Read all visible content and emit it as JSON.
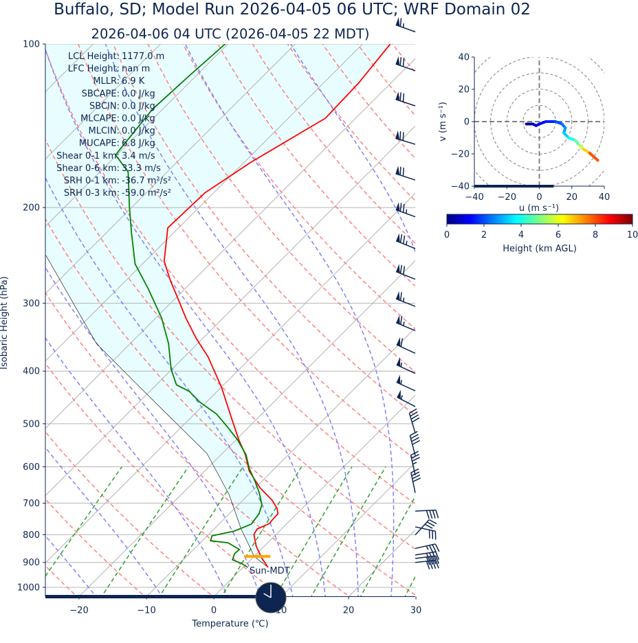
{
  "title": "Buffalo, SD; Model Run 2026-04-05 06 UTC; WRF Domain 02",
  "subtitle": "2026-04-06 04 UTC  (2026-04-05 22 MDT)",
  "stats": [
    {
      "label": "LCL Height:",
      "value": "1177.0 m"
    },
    {
      "label": "LFC Height:",
      "value": "nan m"
    },
    {
      "label": "MLLR:",
      "value": "6.9 K"
    },
    {
      "label": "SBCAPE:",
      "value": "0.0 J/kg"
    },
    {
      "label": "SBCIN:",
      "value": "0.0 J/kg"
    },
    {
      "label": "MLCAPE:",
      "value": "0.0 J/kg"
    },
    {
      "label": "MLCIN:",
      "value": "0.0 J/kg"
    },
    {
      "label": "MUCAPE:",
      "value": "6.8 J/kg"
    },
    {
      "label": "Shear 0-1 km:",
      "value": "3.4 m/s"
    },
    {
      "label": "Shear 0-6 km:",
      "value": "33.3 m/s"
    },
    {
      "label": "SRH 0-1 km:",
      "value": "-36.7 m²/s²"
    },
    {
      "label": "SRH 0-3 km:",
      "value": "-59.0 m²/s²"
    }
  ],
  "sun_label": "Sun-MDT",
  "clock": {
    "hour": 22,
    "minute": 0,
    "timezone": "MDT"
  },
  "colors": {
    "text": "#0d2550",
    "temperature": "#ff0000",
    "dewpoint": "#008000",
    "parcel": "#000000",
    "cin_fill": "#e8fdff",
    "lcl_marker": "#ffa500",
    "dry_adiabat": "#ff8080",
    "moist_adiabat": "#8080ff",
    "mixing_ratio": "#2ca02c",
    "isotherm": "#b4b4b4",
    "isobar": "#b4b4b4",
    "progress": "#0d2550"
  },
  "chart_data": [
    {
      "type": "line",
      "name": "skew-t",
      "xlabel": "Temperature (℃)",
      "ylabel": "Isobaric Height (hPa)",
      "xlim": [
        -25,
        30
      ],
      "ylim": [
        1040,
        100
      ],
      "y_scale": "log",
      "skew": "45 degrees",
      "xticks": [
        -20,
        -10,
        0,
        10,
        20,
        30
      ],
      "xtick_labels": [
        "−20",
        "−10",
        "0",
        "10",
        "20",
        "30"
      ],
      "yticks": [
        100,
        200,
        300,
        400,
        500,
        600,
        700,
        800,
        900,
        1000
      ],
      "ytick_labels": [
        "100",
        "200",
        "300",
        "400",
        "500",
        "600",
        "700",
        "800",
        "900",
        "1000"
      ],
      "grid": true,
      "time_progress_fraction": 0.57,
      "temperature": {
        "p": [
          919,
          882,
          840,
          799,
          781,
          763,
          754,
          732,
          716,
          691,
          656,
          611,
          570,
          535,
          487,
          428,
          377,
          348,
          319,
          290,
          272,
          251,
          218,
          188,
          165,
          137,
          118,
          100
        ],
        "T": [
          3.7,
          1.3,
          -1.2,
          -3.3,
          -3.6,
          -2.6,
          -2.7,
          -2.8,
          -3.7,
          -5.7,
          -9.3,
          -13.4,
          -16.4,
          -19.6,
          -24.0,
          -30.0,
          -36.4,
          -41.0,
          -45.6,
          -50.3,
          -53.5,
          -57.2,
          -61.6,
          -61.3,
          -59.0,
          -54.5,
          -54.8,
          -55.9
        ]
      },
      "dewpoint": {
        "p": [
          919,
          903,
          890,
          867,
          852,
          828,
          821,
          804,
          788,
          765,
          732,
          705,
          671,
          637,
          604,
          570,
          535,
          505,
          480,
          456,
          436,
          424,
          397,
          356,
          319,
          282,
          254,
          223,
          199,
          172,
          160,
          132,
          114,
          100
        ],
        "Td": [
          0.7,
          -0.9,
          -2.7,
          -3.3,
          -3.2,
          -5.9,
          -8.8,
          -9.3,
          -6.7,
          -5.2,
          -5.6,
          -6.5,
          -8.6,
          -11.1,
          -13.8,
          -16.3,
          -19.8,
          -23.4,
          -26.7,
          -31.0,
          -34.1,
          -37.0,
          -40.1,
          -44.3,
          -49.2,
          -55.5,
          -61.1,
          -66.2,
          -70.5,
          -75.8,
          -80.2,
          -81.5,
          -81.0,
          -80.4
        ]
      },
      "parcel": {
        "p": [
          919,
          877,
          845,
          781,
          675,
          567,
          490,
          424,
          356,
          245
        ],
        "T": [
          3.7,
          0.0,
          -1.9,
          -6.0,
          -12.9,
          -22.3,
          -32.6,
          -42.8,
          -55.0,
          -75.6
        ]
      },
      "lcl": {
        "p": 877,
        "T_range": [
          -1.5,
          2.4
        ]
      },
      "dry_adiabats_theta_K": [
        250,
        260,
        270,
        280,
        290,
        300,
        310,
        320,
        330,
        340,
        350,
        360,
        370,
        380,
        390,
        400,
        410,
        420,
        430
      ],
      "moist_adiabats_T0_C": [
        -30,
        -20,
        -10,
        0,
        5,
        10,
        15,
        20,
        25,
        30,
        35
      ],
      "mixing_ratio_lines_kgkg": [
        0.0004,
        0.001,
        0.002,
        0.004,
        0.007,
        0.01,
        0.016,
        0.024,
        0.032
      ],
      "wind_barbs_kt": [
        {
          "p": 95,
          "u": 62,
          "v": -22
        },
        {
          "p": 112,
          "u": 64,
          "v": -22
        },
        {
          "p": 130,
          "u": 66,
          "v": -22
        },
        {
          "p": 153,
          "u": 66,
          "v": -20
        },
        {
          "p": 178,
          "u": 68,
          "v": -22
        },
        {
          "p": 208,
          "u": 72,
          "v": -26
        },
        {
          "p": 238,
          "u": 70,
          "v": -28
        },
        {
          "p": 271,
          "u": 66,
          "v": -26
        },
        {
          "p": 304,
          "u": 62,
          "v": -24
        },
        {
          "p": 337,
          "u": 58,
          "v": -24
        },
        {
          "p": 371,
          "u": 56,
          "v": -26
        },
        {
          "p": 404,
          "u": 52,
          "v": -24
        },
        {
          "p": 435,
          "u": 52,
          "v": -24
        },
        {
          "p": 465,
          "u": 50,
          "v": -26
        },
        {
          "p": 520,
          "u": 12,
          "v": -40
        },
        {
          "p": 572,
          "u": 10,
          "v": -38
        },
        {
          "p": 622,
          "u": 8,
          "v": -36
        },
        {
          "p": 670,
          "u": 8,
          "v": -38
        },
        {
          "p": 724,
          "u": -40,
          "v": -2
        },
        {
          "p": 774,
          "u": -28,
          "v": 6
        },
        {
          "p": 801,
          "u": -20,
          "v": -22
        },
        {
          "p": 848,
          "u": -36,
          "v": -8
        },
        {
          "p": 872,
          "u": -38,
          "v": -6
        },
        {
          "p": 885,
          "u": -38,
          "v": -5
        },
        {
          "p": 900,
          "u": -38,
          "v": -4
        }
      ]
    },
    {
      "type": "line",
      "name": "hodograph",
      "xlabel": "u (m s⁻¹)",
      "ylabel": "v (m s⁻¹)",
      "xlim": [
        -40,
        40
      ],
      "ylim": [
        -40,
        40
      ],
      "xticks": [
        -40,
        -20,
        0,
        20,
        40
      ],
      "xtick_labels": [
        "−40",
        "−20",
        "0",
        "20",
        "40"
      ],
      "yticks": [
        -40,
        -20,
        0,
        20,
        40
      ],
      "ytick_labels": [
        "−40",
        "−20",
        "0",
        "20",
        "40"
      ],
      "rings_m_s": [
        10,
        20,
        30,
        40,
        50
      ],
      "time_progress_fraction": 0.61,
      "u": [
        -8,
        -4,
        -2,
        0,
        4,
        10,
        14,
        16,
        15,
        18,
        22,
        25,
        27,
        31,
        36
      ],
      "v": [
        -1.5,
        -1.5,
        -2.5,
        -1.5,
        0,
        0,
        -1.5,
        -4,
        -7,
        -10,
        -11.5,
        -15,
        -17,
        -19.5,
        -24
      ],
      "height_km": [
        0,
        0.5,
        0.8,
        1.0,
        1.3,
        1.8,
        2.2,
        2.6,
        3.0,
        3.5,
        4.3,
        5.2,
        6.2,
        7.2,
        8.7
      ]
    },
    {
      "type": "colorbar",
      "name": "height-colorbar",
      "label": "Height (km AGL)",
      "colormap": "jet",
      "range": [
        0,
        10
      ],
      "ticks": [
        "0",
        "2",
        "4",
        "6",
        "8",
        "10"
      ]
    }
  ]
}
